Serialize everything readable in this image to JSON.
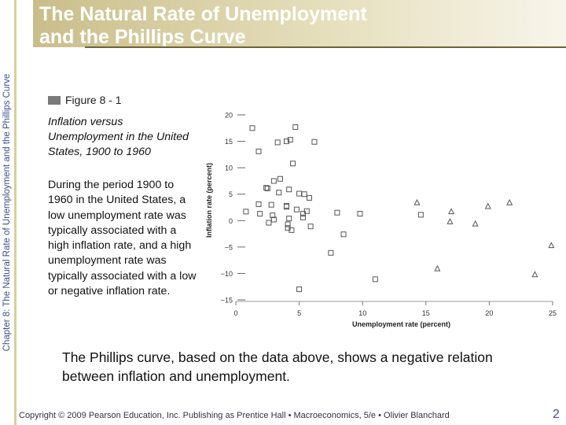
{
  "sidebar_text": "Chapter 8: The Natural Rate of Unemployment and the Phillips Curve",
  "title_line1": "The Natural Rate of Unemployment",
  "title_line2": "and the Phillips Curve",
  "figure_label": "Figure 8 - 1",
  "caption_title": "Inflation versus Unemployment in the United States, 1900 to 1960",
  "caption_body": "During the period 1900 to 1960 in the United States, a low unemployment rate was typically associated with a high inflation rate, and a high unemployment rate was typically associated with a low or negative inflation rate.",
  "summary": "The Phillips curve, based on the data above, shows a negative relation between inflation and unemployment.",
  "footer": "Copyright © 2009 Pearson Education, Inc. Publishing as Prentice Hall • Macroeconomics, 5/e • Olivier Blanchard",
  "page_number": "2",
  "colors": {
    "sidebar_text": "#3a4f8a",
    "header_band": "#c9be8a",
    "marker": "#555555"
  },
  "chart_data": {
    "type": "scatter",
    "xlabel": "Unemployment rate (percent)",
    "ylabel": "Inflation rate (percent)",
    "xlim": [
      0,
      25
    ],
    "ylim": [
      -15,
      20
    ],
    "x_ticks": [
      0,
      5,
      10,
      15,
      20,
      25
    ],
    "y_ticks": [
      20,
      15,
      10,
      5,
      0,
      -5,
      -10,
      -15
    ],
    "y_tick_labels": [
      "20",
      "15",
      "10",
      "5",
      "0",
      "−5",
      "−10",
      "−15"
    ],
    "series": [
      {
        "marker": "square",
        "points": [
          [
            1.3,
            17.5
          ],
          [
            4.7,
            17.7
          ],
          [
            3.3,
            14.8
          ],
          [
            4.0,
            15.0
          ],
          [
            4.3,
            15.3
          ],
          [
            6.2,
            14.9
          ],
          [
            1.8,
            13.1
          ],
          [
            3.0,
            7.5
          ],
          [
            3.5,
            7.9
          ],
          [
            2.5,
            6.1
          ],
          [
            4.2,
            5.9
          ],
          [
            5.0,
            5.1
          ],
          [
            5.4,
            5.0
          ],
          [
            5.8,
            4.3
          ],
          [
            1.8,
            3.1
          ],
          [
            2.8,
            3.0
          ],
          [
            4.0,
            2.8
          ],
          [
            4.8,
            2.1
          ],
          [
            5.6,
            1.8
          ],
          [
            0.8,
            1.7
          ],
          [
            1.9,
            1.3
          ],
          [
            2.9,
            1.0
          ],
          [
            3.0,
            0.2
          ],
          [
            4.2,
            0.4
          ],
          [
            5.3,
            1.3
          ],
          [
            5.3,
            0.6
          ],
          [
            8.0,
            1.5
          ],
          [
            9.8,
            1.3
          ],
          [
            14.6,
            1.1
          ],
          [
            2.6,
            -0.4
          ],
          [
            4.1,
            -0.7
          ],
          [
            4.1,
            -1.4
          ],
          [
            4.4,
            -1.8
          ],
          [
            5.9,
            -1.1
          ],
          [
            8.5,
            -2.6
          ],
          [
            2.4,
            6.2
          ],
          [
            3.4,
            5.3
          ],
          [
            4.0,
            2.6
          ],
          [
            4.5,
            10.8
          ],
          [
            7.5,
            -6.1
          ],
          [
            11.0,
            -11.1
          ],
          [
            5.0,
            -13.0
          ]
        ]
      },
      {
        "marker": "triangle",
        "points": [
          [
            14.3,
            3.4
          ],
          [
            17.0,
            1.7
          ],
          [
            16.9,
            -0.2
          ],
          [
            18.9,
            -0.6
          ],
          [
            19.9,
            2.7
          ],
          [
            21.6,
            3.4
          ],
          [
            24.9,
            -4.7
          ],
          [
            15.9,
            -9.1
          ],
          [
            23.6,
            -10.2
          ]
        ]
      }
    ]
  }
}
